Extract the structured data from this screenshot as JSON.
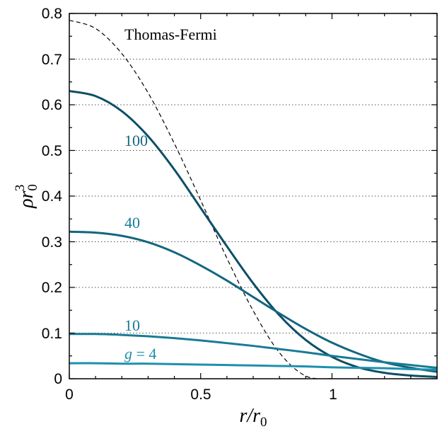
{
  "chart_data": {
    "type": "line",
    "xlabel": "r/r0",
    "ylabel": "ρr0^3",
    "xlim": [
      0,
      1.4
    ],
    "ylim": [
      0,
      0.8
    ],
    "grid": "horizontal-dotted",
    "x_ticks": [
      "0",
      "0.5",
      "1"
    ],
    "y_ticks": [
      "0",
      "0.1",
      "0.2",
      "0.3",
      "0.4",
      "0.5",
      "0.6",
      "0.7",
      "0.8"
    ],
    "annotations": [
      "Thomas-Fermi",
      "100",
      "40",
      "10",
      "g = 4"
    ],
    "series": [
      {
        "name": "Thomas-Fermi",
        "style": "dashed",
        "color": "#000000",
        "x": [
          0,
          0.1,
          0.2,
          0.3,
          0.4,
          0.5,
          0.6,
          0.7,
          0.8,
          0.9,
          1.0
        ],
        "y": [
          0.785,
          0.767,
          0.712,
          0.626,
          0.515,
          0.391,
          0.264,
          0.149,
          0.057,
          0.006,
          0.0
        ]
      },
      {
        "name": "100",
        "style": "solid",
        "color": "#0d4f66",
        "x": [
          0,
          0.1,
          0.2,
          0.3,
          0.4,
          0.5,
          0.6,
          0.7,
          0.8,
          0.9,
          1.0,
          1.1,
          1.2,
          1.3,
          1.4
        ],
        "y": [
          0.63,
          0.619,
          0.586,
          0.531,
          0.458,
          0.374,
          0.29,
          0.209,
          0.139,
          0.085,
          0.048,
          0.025,
          0.013,
          0.007,
          0.004
        ]
      },
      {
        "name": "40",
        "style": "solid",
        "color": "#13667f",
        "x": [
          0,
          0.1,
          0.2,
          0.3,
          0.4,
          0.5,
          0.6,
          0.7,
          0.8,
          0.9,
          1.0,
          1.1,
          1.2,
          1.3,
          1.4
        ],
        "y": [
          0.322,
          0.32,
          0.313,
          0.299,
          0.277,
          0.248,
          0.215,
          0.179,
          0.143,
          0.109,
          0.079,
          0.055,
          0.036,
          0.024,
          0.015
        ]
      },
      {
        "name": "10",
        "style": "solid",
        "color": "#187b95",
        "x": [
          0,
          0.1,
          0.2,
          0.3,
          0.4,
          0.5,
          0.6,
          0.7,
          0.8,
          0.9,
          1.0,
          1.1,
          1.2,
          1.3,
          1.4
        ],
        "y": [
          0.098,
          0.098,
          0.096,
          0.093,
          0.089,
          0.084,
          0.078,
          0.072,
          0.065,
          0.058,
          0.05,
          0.043,
          0.036,
          0.03,
          0.024
        ]
      },
      {
        "name": "g = 4",
        "style": "solid",
        "color": "#1e8fae",
        "x": [
          0,
          0.1,
          0.2,
          0.3,
          0.4,
          0.5,
          0.6,
          0.7,
          0.8,
          0.9,
          1.0,
          1.1,
          1.2,
          1.3,
          1.4
        ],
        "y": [
          0.034,
          0.034,
          0.033,
          0.033,
          0.032,
          0.031,
          0.03,
          0.029,
          0.028,
          0.027,
          0.025,
          0.024,
          0.023,
          0.021,
          0.02
        ]
      }
    ]
  }
}
